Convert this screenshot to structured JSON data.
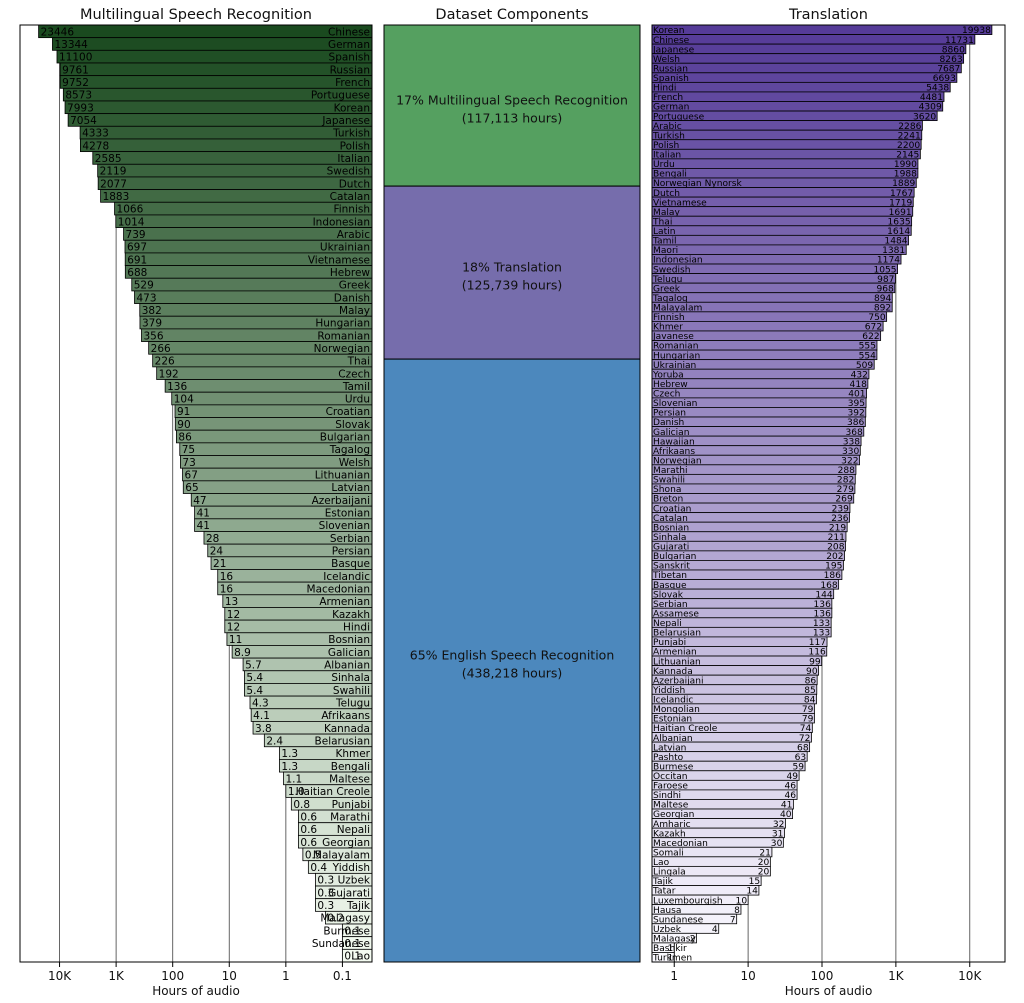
{
  "chart_data": [
    {
      "type": "bar",
      "title": "Multilingual Speech Recognition",
      "xlabel": "Hours of audio",
      "x_scale": "log",
      "x_reversed": true,
      "xlim": [
        50000,
        0.03
      ],
      "xticks": [
        "10K",
        "1K",
        "100",
        "10",
        "1",
        "0.1"
      ],
      "grid": "vertical",
      "categories": [
        "Chinese",
        "German",
        "Spanish",
        "Russian",
        "French",
        "Portuguese",
        "Korean",
        "Japanese",
        "Turkish",
        "Polish",
        "Italian",
        "Swedish",
        "Dutch",
        "Catalan",
        "Finnish",
        "Indonesian",
        "Arabic",
        "Ukrainian",
        "Vietnamese",
        "Hebrew",
        "Greek",
        "Danish",
        "Malay",
        "Hungarian",
        "Romanian",
        "Norwegian",
        "Thai",
        "Czech",
        "Tamil",
        "Urdu",
        "Croatian",
        "Slovak",
        "Bulgarian",
        "Tagalog",
        "Welsh",
        "Lithuanian",
        "Latvian",
        "Azerbaijani",
        "Estonian",
        "Slovenian",
        "Serbian",
        "Persian",
        "Basque",
        "Icelandic",
        "Macedonian",
        "Armenian",
        "Kazakh",
        "Hindi",
        "Bosnian",
        "Galician",
        "Albanian",
        "Sinhala",
        "Swahili",
        "Telugu",
        "Afrikaans",
        "Kannada",
        "Belarusian",
        "Khmer",
        "Bengali",
        "Maltese",
        "Haitian Creole",
        "Punjabi",
        "Marathi",
        "Nepali",
        "Georgian",
        "Malayalam",
        "Yiddish",
        "Uzbek",
        "Gujarati",
        "Tajik",
        "Malagasy",
        "Burmese",
        "Sundanese",
        "Lao"
      ],
      "values": [
        23446,
        13344,
        11100,
        9761,
        9752,
        8573,
        7993,
        7054,
        4333,
        4278,
        2585,
        2119,
        2077,
        1883,
        1066,
        1014,
        739,
        697,
        691,
        688,
        529,
        473,
        382,
        379,
        356,
        266,
        226,
        192,
        136,
        104,
        91,
        90,
        86,
        75,
        73,
        67,
        65,
        47,
        41,
        41,
        28,
        24,
        21,
        16,
        16,
        13,
        12,
        12,
        11,
        8.9,
        5.7,
        5.4,
        5.4,
        4.3,
        4.1,
        3.8,
        2.4,
        1.3,
        1.3,
        1.1,
        1.0,
        0.8,
        0.6,
        0.6,
        0.6,
        0.5,
        0.4,
        0.3,
        0.3,
        0.3,
        0.2,
        0.1,
        0.1,
        0.1
      ],
      "value_labels": [
        "23446",
        "13344",
        "11100",
        "9761",
        "9752",
        "8573",
        "7993",
        "7054",
        "4333",
        "4278",
        "2585",
        "2119",
        "2077",
        "1883",
        "1066",
        "1014",
        "739",
        "697",
        "691",
        "688",
        "529",
        "473",
        "382",
        "379",
        "356",
        "266",
        "226",
        "192",
        "136",
        "104",
        "91",
        "90",
        "86",
        "75",
        "73",
        "67",
        "65",
        "47",
        "41",
        "41",
        "28",
        "24",
        "21",
        "16",
        "16",
        "13",
        "12",
        "12",
        "11",
        "8.9",
        "5.7",
        "5.4",
        "5.4",
        "4.3",
        "4.1",
        "3.8",
        "2.4",
        "1.3",
        "1.3",
        "1.1",
        "1.0",
        "0.8",
        "0.6",
        "0.6",
        "0.6",
        "0.5",
        "0.4",
        "0.3",
        "0.3",
        "0.3",
        "0.2",
        "0.1",
        "0.1",
        "0.1"
      ],
      "colors": {
        "dark": "#1a4a1f",
        "light": "#f4fbf1"
      }
    },
    {
      "type": "stacked-bar",
      "title": "Dataset Components",
      "segments": [
        {
          "label": "17% Multilingual Speech Recognition",
          "sublabel": "(117,113 hours)",
          "percent": 17,
          "hours": 117113,
          "color": "#55a060"
        },
        {
          "label": "18% Translation",
          "sublabel": "(125,739 hours)",
          "percent": 18,
          "hours": 125739,
          "color": "#766dac"
        },
        {
          "label": "65% English Speech Recognition",
          "sublabel": "(438,218 hours)",
          "percent": 65,
          "hours": 438218,
          "color": "#4c88bd"
        }
      ]
    },
    {
      "type": "bar",
      "title": "Translation",
      "xlabel": "Hours of audio",
      "x_scale": "log",
      "xlim": [
        0.5,
        30000
      ],
      "xticks": [
        "1",
        "10",
        "100",
        "1K",
        "10K"
      ],
      "grid": "vertical",
      "categories": [
        "Korean",
        "Chinese",
        "Japanese",
        "Welsh",
        "Russian",
        "Spanish",
        "Hindi",
        "French",
        "German",
        "Portuguese",
        "Arabic",
        "Turkish",
        "Polish",
        "Italian",
        "Urdu",
        "Bengali",
        "Norwegian Nynorsk",
        "Dutch",
        "Vietnamese",
        "Malay",
        "Thai",
        "Latin",
        "Tamil",
        "Maori",
        "Indonesian",
        "Swedish",
        "Telugu",
        "Greek",
        "Tagalog",
        "Malayalam",
        "Finnish",
        "Khmer",
        "Javanese",
        "Romanian",
        "Hungarian",
        "Ukrainian",
        "Yoruba",
        "Hebrew",
        "Czech",
        "Slovenian",
        "Persian",
        "Danish",
        "Galician",
        "Hawaiian",
        "Afrikaans",
        "Norwegian",
        "Marathi",
        "Swahili",
        "Shona",
        "Breton",
        "Croatian",
        "Catalan",
        "Bosnian",
        "Sinhala",
        "Gujarati",
        "Bulgarian",
        "Sanskrit",
        "Tibetan",
        "Basque",
        "Slovak",
        "Serbian",
        "Assamese",
        "Nepali",
        "Belarusian",
        "Punjabi",
        "Armenian",
        "Lithuanian",
        "Kannada",
        "Azerbaijani",
        "Yiddish",
        "Icelandic",
        "Mongolian",
        "Estonian",
        "Haitian Creole",
        "Albanian",
        "Latvian",
        "Pashto",
        "Burmese",
        "Occitan",
        "Faroese",
        "Sindhi",
        "Maltese",
        "Georgian",
        "Amharic",
        "Kazakh",
        "Macedonian",
        "Somali",
        "Lao",
        "Lingala",
        "Tajik",
        "Tatar",
        "Luxembourgish",
        "Hausa",
        "Sundanese",
        "Uzbek",
        "Malagasy",
        "Bashkir",
        "Turkmen"
      ],
      "values": [
        19938,
        11731,
        8860,
        8263,
        7687,
        6693,
        5438,
        4481,
        4309,
        3620,
        2286,
        2241,
        2200,
        2145,
        1990,
        1988,
        1889,
        1767,
        1719,
        1691,
        1635,
        1614,
        1484,
        1381,
        1174,
        1055,
        987,
        968,
        894,
        892,
        750,
        672,
        622,
        555,
        554,
        509,
        432,
        418,
        401,
        395,
        392,
        386,
        368,
        338,
        330,
        322,
        288,
        282,
        279,
        269,
        239,
        236,
        219,
        211,
        208,
        202,
        195,
        186,
        168,
        144,
        136,
        136,
        133,
        133,
        117,
        116,
        99,
        90,
        86,
        85,
        84,
        79,
        79,
        74,
        72,
        68,
        63,
        59,
        49,
        46,
        46,
        41,
        40,
        32,
        31,
        30,
        21,
        20,
        20,
        15,
        14,
        10,
        8,
        7,
        4,
        2,
        1,
        1
      ],
      "value_labels": [
        "19938",
        "11731",
        "8860",
        "8263",
        "7687",
        "6693",
        "5438",
        "4481",
        "4309",
        "3620",
        "2286",
        "2241",
        "2200",
        "2145",
        "1990",
        "1988",
        "1889",
        "1767",
        "1719",
        "1691",
        "1635",
        "1614",
        "1484",
        "1381",
        "1174",
        "1055",
        "987",
        "968",
        "894",
        "892",
        "750",
        "672",
        "622",
        "555",
        "554",
        "509",
        "432",
        "418",
        "401",
        "395",
        "392",
        "386",
        "368",
        "338",
        "330",
        "322",
        "288",
        "282",
        "279",
        "269",
        "239",
        "236",
        "219",
        "211",
        "208",
        "202",
        "195",
        "186",
        "168",
        "144",
        "136",
        "136",
        "133",
        "133",
        "117",
        "116",
        "99",
        "90",
        "86",
        "85",
        "84",
        "79",
        "79",
        "74",
        "72",
        "68",
        "63",
        "59",
        "49",
        "46",
        "46",
        "41",
        "40",
        "32",
        "31",
        "30",
        "21",
        "20",
        "20",
        "15",
        "14",
        "10",
        "8",
        "7",
        "4",
        "2",
        "1",
        "1"
      ],
      "colors": {
        "dark": "#553b98",
        "light": "#fbfaff"
      }
    }
  ]
}
